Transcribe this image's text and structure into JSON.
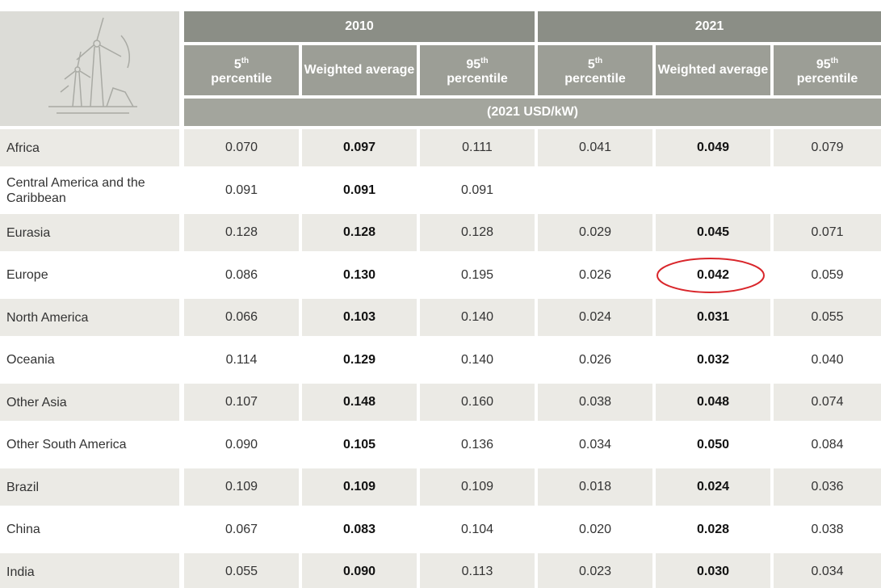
{
  "table": {
    "years": [
      "2010",
      "2021"
    ],
    "columns": [
      {
        "number": "5",
        "suffix": "th",
        "text": "percentile"
      },
      {
        "text": "Weighted average"
      },
      {
        "number": "95",
        "suffix": "th",
        "text": "percentile"
      },
      {
        "number": "5",
        "suffix": "th",
        "text": "percentile"
      },
      {
        "text": "Weighted average"
      },
      {
        "number": "95",
        "suffix": "th",
        "text": "percentile"
      }
    ],
    "unit": "(2021 USD/kW)",
    "rows": [
      {
        "label": "Africa",
        "values": [
          "0.070",
          "0.097",
          "0.111",
          "0.041",
          "0.049",
          "0.079"
        ]
      },
      {
        "label": "Central America and the Caribbean",
        "values": [
          "0.091",
          "0.091",
          "0.091",
          null,
          null,
          null
        ]
      },
      {
        "label": "Eurasia",
        "values": [
          "0.128",
          "0.128",
          "0.128",
          "0.029",
          "0.045",
          "0.071"
        ]
      },
      {
        "label": "Europe",
        "values": [
          "0.086",
          "0.130",
          "0.195",
          "0.026",
          "0.042",
          "0.059"
        ]
      },
      {
        "label": "North America",
        "values": [
          "0.066",
          "0.103",
          "0.140",
          "0.024",
          "0.031",
          "0.055"
        ]
      },
      {
        "label": "Oceania",
        "values": [
          "0.114",
          "0.129",
          "0.140",
          "0.026",
          "0.032",
          "0.040"
        ]
      },
      {
        "label": "Other Asia",
        "values": [
          "0.107",
          "0.148",
          "0.160",
          "0.038",
          "0.048",
          "0.074"
        ]
      },
      {
        "label": "Other South America",
        "values": [
          "0.090",
          "0.105",
          "0.136",
          "0.034",
          "0.050",
          "0.084"
        ]
      },
      {
        "label": "Brazil",
        "values": [
          "0.109",
          "0.109",
          "0.109",
          "0.018",
          "0.024",
          "0.036"
        ]
      },
      {
        "label": "China",
        "values": [
          "0.067",
          "0.083",
          "0.104",
          "0.020",
          "0.028",
          "0.038"
        ]
      },
      {
        "label": "India",
        "values": [
          "0.055",
          "0.090",
          "0.113",
          "0.023",
          "0.030",
          "0.034"
        ]
      }
    ]
  }
}
